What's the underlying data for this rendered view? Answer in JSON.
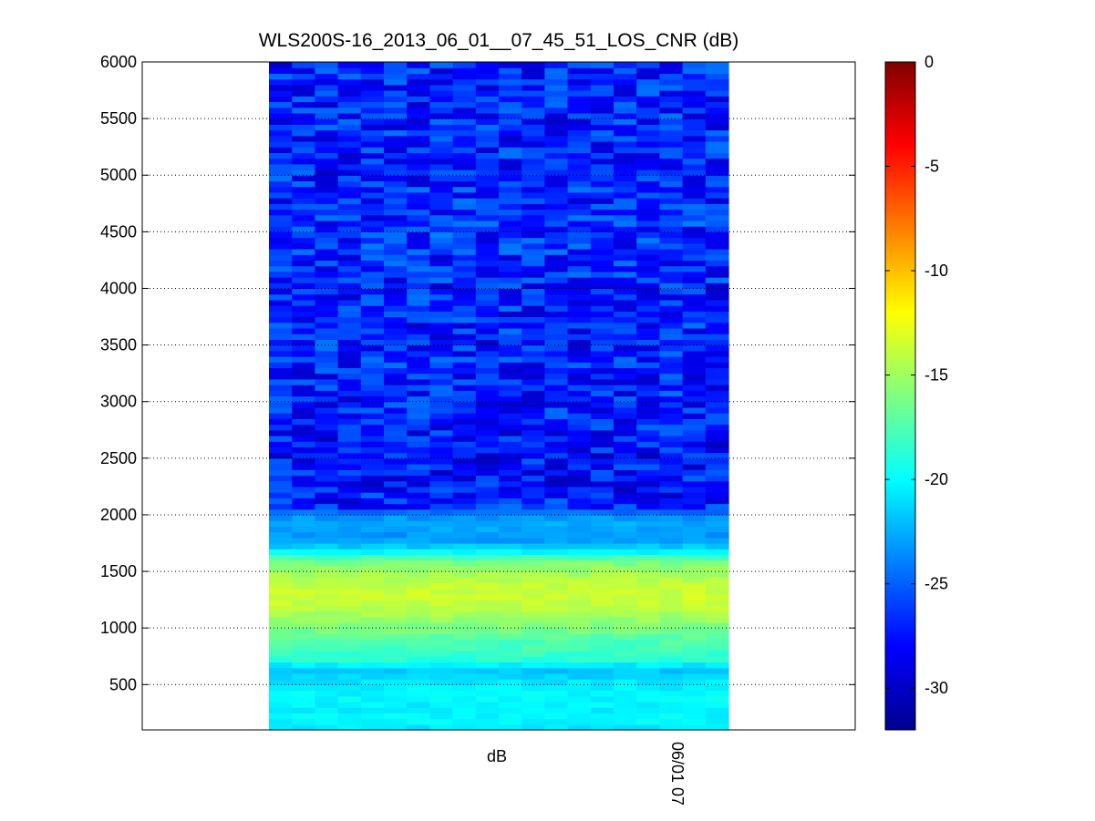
{
  "chart_data": {
    "type": "heatmap",
    "title": "WLS200S-16_2013_06_01__07_45_51_LOS_CNR (dB)",
    "xlabel": "dB",
    "x_tick_labels": [
      "06/01 07"
    ],
    "ylabel": "",
    "ylim": [
      100,
      6000
    ],
    "y_ticks": [
      500,
      1000,
      1500,
      2000,
      2500,
      3000,
      3500,
      4000,
      4500,
      5000,
      5500,
      6000
    ],
    "grid": "y-dotted",
    "colormap": "jet",
    "colorbar": {
      "min": -32,
      "max": 0,
      "ticks": [
        0,
        -5,
        -10,
        -15,
        -20,
        -25,
        -30
      ],
      "units": "dB"
    },
    "columns": 20,
    "profile": {
      "range_m": [
        100,
        200,
        300,
        400,
        500,
        550,
        600,
        650,
        700,
        800,
        900,
        1000,
        1100,
        1200,
        1300,
        1400,
        1500,
        1600,
        1650,
        1700,
        1750,
        1800,
        1850,
        1900,
        1950,
        2000,
        2050,
        2100,
        2200,
        2500,
        3000,
        3500,
        4000,
        4500,
        5000,
        5500,
        6000
      ],
      "cnr_db": [
        -21,
        -20,
        -20.5,
        -20,
        -20.5,
        -21,
        -21.5,
        -22,
        -19,
        -18,
        -17.5,
        -16,
        -15,
        -14,
        -13.5,
        -14,
        -15,
        -16.5,
        -19,
        -21,
        -22.5,
        -23.5,
        -23,
        -22.5,
        -23,
        -23.5,
        -25.5,
        -27,
        -27.5,
        -27.5,
        -27,
        -27,
        -27,
        -26.5,
        -27,
        -27,
        -27
      ]
    }
  }
}
